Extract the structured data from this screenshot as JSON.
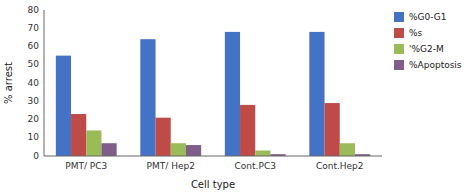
{
  "chart_data": {
    "type": "bar",
    "categories": [
      "PMT/ PC3",
      "PMT/ Hep2",
      "Cont.PC3",
      "Cont.Hep2"
    ],
    "series": [
      {
        "name": "%G0-G1",
        "color": "#4472C4",
        "values": [
          55,
          64,
          68,
          68
        ]
      },
      {
        "name": "%s",
        "color": "#BE4B48",
        "values": [
          23,
          21,
          28,
          29
        ]
      },
      {
        "name": "'%G2-M",
        "color": "#9BBB59",
        "values": [
          14,
          7,
          3,
          7
        ]
      },
      {
        "name": "%Apoptosis",
        "color": "#7F5F8A",
        "values": [
          7,
          6,
          1,
          1
        ]
      }
    ],
    "xlabel": "Cell type",
    "ylabel": "% arrest",
    "ylim": [
      0,
      80
    ],
    "yticks": [
      0,
      10,
      20,
      30,
      40,
      50,
      60,
      70,
      80
    ],
    "grid": false,
    "legend": "right"
  }
}
